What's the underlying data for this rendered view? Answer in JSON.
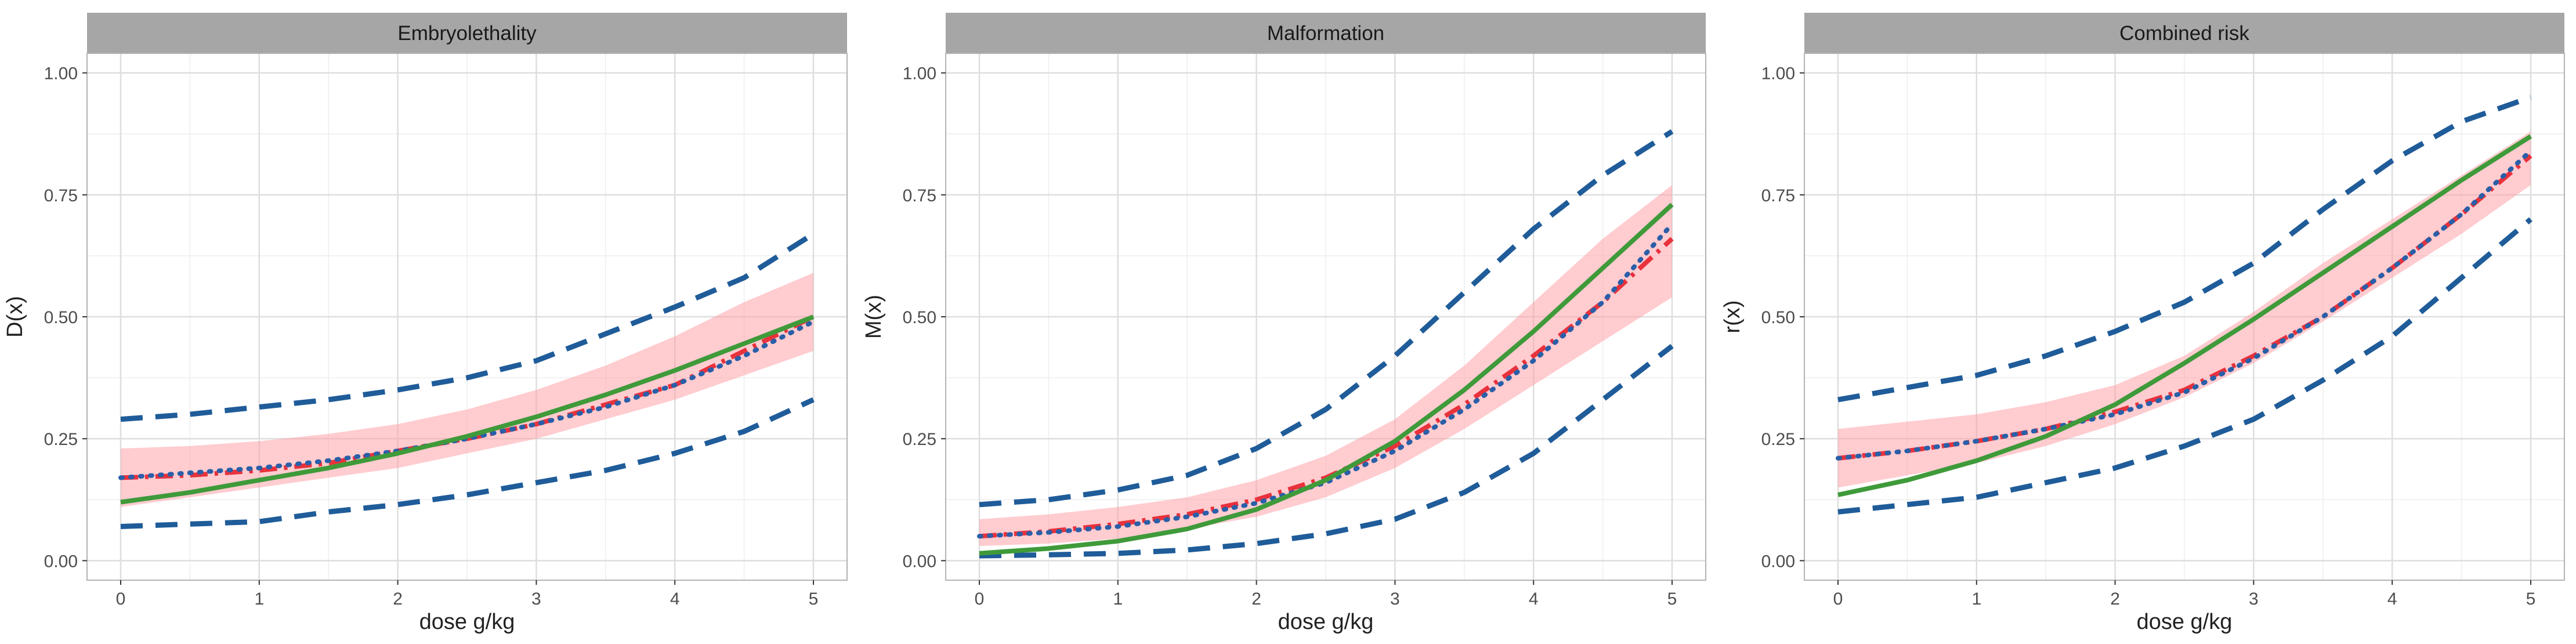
{
  "colors": {
    "panel_border": "#b3b3b3",
    "strip_fill": "#a6a6a6",
    "grid_major": "#dedede",
    "grid_minor": "#eeeeee",
    "ribbon": "#ff9aa2",
    "green": "#3f9a3a",
    "red": "#e8323c",
    "blue": "#2a5fa8",
    "navy": "#1f5c99",
    "text": "#222222",
    "tick_text": "#4d4d4d"
  },
  "chart_data": [
    {
      "type": "line",
      "title": "Embryolethality",
      "xlabel": "dose g/kg",
      "ylabel": "D(x)",
      "xlim": [
        0,
        5
      ],
      "ylim": [
        0,
        1
      ],
      "x_ticks": [
        "0",
        "1",
        "2",
        "3",
        "4",
        "5"
      ],
      "y_ticks": [
        "0.00",
        "0.25",
        "0.50",
        "0.75",
        "1.00"
      ],
      "x": [
        0,
        0.5,
        1,
        1.5,
        2,
        2.5,
        3,
        3.5,
        4,
        4.5,
        5
      ],
      "series": [
        {
          "name": "ribbon_lower",
          "values": [
            0.11,
            0.13,
            0.15,
            0.17,
            0.19,
            0.22,
            0.25,
            0.29,
            0.33,
            0.38,
            0.43
          ]
        },
        {
          "name": "ribbon_upper",
          "values": [
            0.23,
            0.235,
            0.245,
            0.26,
            0.28,
            0.31,
            0.35,
            0.4,
            0.46,
            0.53,
            0.59
          ]
        },
        {
          "name": "lower_band",
          "values": [
            0.07,
            0.075,
            0.08,
            0.1,
            0.115,
            0.135,
            0.16,
            0.185,
            0.22,
            0.265,
            0.33
          ]
        },
        {
          "name": "upper_band",
          "values": [
            0.29,
            0.3,
            0.315,
            0.33,
            0.35,
            0.375,
            0.41,
            0.465,
            0.52,
            0.58,
            0.67
          ]
        },
        {
          "name": "red_dashdot",
          "values": [
            0.17,
            0.175,
            0.185,
            0.2,
            0.225,
            0.25,
            0.28,
            0.32,
            0.36,
            0.43,
            0.5
          ]
        },
        {
          "name": "blue_dotted",
          "values": [
            0.17,
            0.18,
            0.19,
            0.205,
            0.225,
            0.25,
            0.28,
            0.315,
            0.36,
            0.42,
            0.49
          ]
        },
        {
          "name": "green_solid",
          "values": [
            0.12,
            0.14,
            0.165,
            0.19,
            0.22,
            0.255,
            0.295,
            0.34,
            0.39,
            0.445,
            0.5
          ]
        }
      ]
    },
    {
      "type": "line",
      "title": "Malformation",
      "xlabel": "dose g/kg",
      "ylabel": "M(x)",
      "xlim": [
        0,
        5
      ],
      "ylim": [
        0,
        1
      ],
      "x_ticks": [
        "0",
        "1",
        "2",
        "3",
        "4",
        "5"
      ],
      "y_ticks": [
        "0.00",
        "0.25",
        "0.50",
        "0.75",
        "1.00"
      ],
      "x": [
        0,
        0.5,
        1,
        1.5,
        2,
        2.5,
        3,
        3.5,
        4,
        4.5,
        5
      ],
      "series": [
        {
          "name": "ribbon_lower",
          "values": [
            0.03,
            0.035,
            0.045,
            0.065,
            0.09,
            0.13,
            0.19,
            0.27,
            0.36,
            0.45,
            0.54
          ]
        },
        {
          "name": "ribbon_upper",
          "values": [
            0.085,
            0.095,
            0.11,
            0.13,
            0.165,
            0.215,
            0.29,
            0.4,
            0.53,
            0.66,
            0.77
          ]
        },
        {
          "name": "lower_band",
          "values": [
            0.01,
            0.012,
            0.015,
            0.022,
            0.035,
            0.055,
            0.085,
            0.14,
            0.22,
            0.33,
            0.44
          ]
        },
        {
          "name": "upper_band",
          "values": [
            0.115,
            0.125,
            0.145,
            0.175,
            0.23,
            0.31,
            0.42,
            0.55,
            0.68,
            0.79,
            0.88
          ]
        },
        {
          "name": "red_dashdot",
          "values": [
            0.05,
            0.06,
            0.075,
            0.095,
            0.125,
            0.17,
            0.235,
            0.32,
            0.42,
            0.53,
            0.66
          ]
        },
        {
          "name": "blue_dotted",
          "values": [
            0.05,
            0.058,
            0.07,
            0.09,
            0.118,
            0.16,
            0.225,
            0.31,
            0.41,
            0.53,
            0.69
          ]
        },
        {
          "name": "green_solid",
          "values": [
            0.015,
            0.025,
            0.04,
            0.065,
            0.105,
            0.165,
            0.245,
            0.35,
            0.47,
            0.6,
            0.73
          ]
        }
      ]
    },
    {
      "type": "line",
      "title": "Combined risk",
      "xlabel": "dose g/kg",
      "ylabel": "r(x)",
      "xlim": [
        0,
        5
      ],
      "ylim": [
        0,
        1
      ],
      "x_ticks": [
        "0",
        "1",
        "2",
        "3",
        "4",
        "5"
      ],
      "y_ticks": [
        "0.00",
        "0.25",
        "0.50",
        "0.75",
        "1.00"
      ],
      "x": [
        0,
        0.5,
        1,
        1.5,
        2,
        2.5,
        3,
        3.5,
        4,
        4.5,
        5
      ],
      "series": [
        {
          "name": "ribbon_lower",
          "values": [
            0.15,
            0.175,
            0.2,
            0.235,
            0.28,
            0.335,
            0.405,
            0.49,
            0.58,
            0.67,
            0.77
          ]
        },
        {
          "name": "ribbon_upper",
          "values": [
            0.27,
            0.285,
            0.3,
            0.325,
            0.36,
            0.42,
            0.51,
            0.61,
            0.7,
            0.79,
            0.88
          ]
        },
        {
          "name": "lower_band",
          "values": [
            0.1,
            0.115,
            0.13,
            0.16,
            0.19,
            0.235,
            0.29,
            0.37,
            0.46,
            0.58,
            0.7
          ]
        },
        {
          "name": "upper_band",
          "values": [
            0.33,
            0.355,
            0.38,
            0.42,
            0.47,
            0.53,
            0.61,
            0.72,
            0.82,
            0.9,
            0.95
          ]
        },
        {
          "name": "red_dashdot",
          "values": [
            0.21,
            0.225,
            0.245,
            0.27,
            0.305,
            0.35,
            0.42,
            0.5,
            0.6,
            0.71,
            0.83
          ]
        },
        {
          "name": "blue_dotted",
          "values": [
            0.21,
            0.225,
            0.245,
            0.27,
            0.3,
            0.345,
            0.415,
            0.5,
            0.6,
            0.71,
            0.84
          ]
        },
        {
          "name": "green_solid",
          "values": [
            0.135,
            0.165,
            0.205,
            0.255,
            0.32,
            0.405,
            0.495,
            0.59,
            0.685,
            0.78,
            0.87
          ]
        }
      ]
    }
  ]
}
